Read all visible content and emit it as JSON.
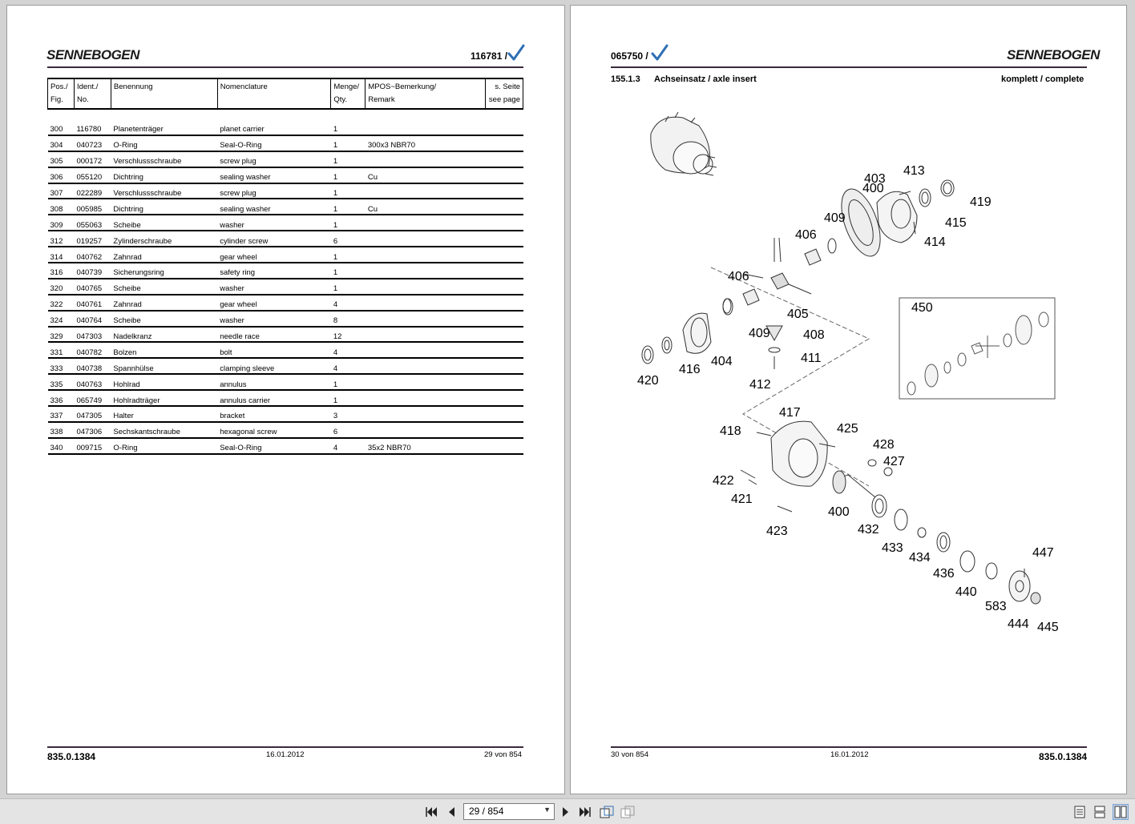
{
  "left_page": {
    "logo": "SENNEBOGEN",
    "doc_number": "116781 /",
    "headers": {
      "pos": [
        "Pos./",
        "Fig."
      ],
      "ident": [
        "Ident./",
        "No."
      ],
      "benennung": "Benennung",
      "nomenclature": "Nomenclature",
      "menge": [
        "Menge/",
        "Qty."
      ],
      "mpos": [
        "MPOS~Bemerkung/",
        "Remark"
      ],
      "seite": [
        "s. Seite",
        "see page"
      ]
    },
    "rows": [
      {
        "pos": "300",
        "ident": "116780",
        "de": "Planetenträger",
        "en": "planet carrier",
        "qty": "1",
        "remark": ""
      },
      {
        "pos": "304",
        "ident": "040723",
        "de": "O-Ring",
        "en": "Seal-O-Ring",
        "qty": "1",
        "remark": "300x3 NBR70"
      },
      {
        "pos": "305",
        "ident": "000172",
        "de": "Verschlussschraube",
        "en": "screw plug",
        "qty": "1",
        "remark": ""
      },
      {
        "pos": "306",
        "ident": "055120",
        "de": "Dichtring",
        "en": "sealing washer",
        "qty": "1",
        "remark": "Cu"
      },
      {
        "pos": "307",
        "ident": "022289",
        "de": "Verschlussschraube",
        "en": "screw plug",
        "qty": "1",
        "remark": ""
      },
      {
        "pos": "308",
        "ident": "005985",
        "de": "Dichtring",
        "en": "sealing washer",
        "qty": "1",
        "remark": "Cu"
      },
      {
        "pos": "309",
        "ident": "055063",
        "de": "Scheibe",
        "en": "washer",
        "qty": "1",
        "remark": ""
      },
      {
        "pos": "312",
        "ident": "019257",
        "de": "Zylinderschraube",
        "en": "cylinder screw",
        "qty": "6",
        "remark": ""
      },
      {
        "pos": "314",
        "ident": "040762",
        "de": "Zahnrad",
        "en": "gear wheel",
        "qty": "1",
        "remark": ""
      },
      {
        "pos": "316",
        "ident": "040739",
        "de": "Sicherungsring",
        "en": "safety ring",
        "qty": "1",
        "remark": ""
      },
      {
        "pos": "320",
        "ident": "040765",
        "de": "Scheibe",
        "en": "washer",
        "qty": "1",
        "remark": ""
      },
      {
        "pos": "322",
        "ident": "040761",
        "de": "Zahnrad",
        "en": "gear wheel",
        "qty": "4",
        "remark": ""
      },
      {
        "pos": "324",
        "ident": "040764",
        "de": "Scheibe",
        "en": "washer",
        "qty": "8",
        "remark": ""
      },
      {
        "pos": "329",
        "ident": "047303",
        "de": "Nadelkranz",
        "en": "needle race",
        "qty": "12",
        "remark": ""
      },
      {
        "pos": "331",
        "ident": "040782",
        "de": "Bolzen",
        "en": "bolt",
        "qty": "4",
        "remark": ""
      },
      {
        "pos": "333",
        "ident": "040738",
        "de": "Spannhülse",
        "en": "clamping sleeve",
        "qty": "4",
        "remark": ""
      },
      {
        "pos": "335",
        "ident": "040763",
        "de": "Hohlrad",
        "en": "annulus",
        "qty": "1",
        "remark": ""
      },
      {
        "pos": "336",
        "ident": "065749",
        "de": "Hohlradträger",
        "en": "annulus carrier",
        "qty": "1",
        "remark": ""
      },
      {
        "pos": "337",
        "ident": "047305",
        "de": "Halter",
        "en": "bracket",
        "qty": "3",
        "remark": ""
      },
      {
        "pos": "338",
        "ident": "047306",
        "de": "Sechskantschraube",
        "en": "hexagonal screw",
        "qty": "6",
        "remark": ""
      },
      {
        "pos": "340",
        "ident": "009715",
        "de": "O-Ring",
        "en": "Seal-O-Ring",
        "qty": "4",
        "remark": "35x2 NBR70"
      }
    ],
    "footer": {
      "doc": "835.0.1384",
      "date": "16.01.2012",
      "page": "29 von 854"
    }
  },
  "right_page": {
    "logo": "SENNEBOGEN",
    "doc_number": "065750 /",
    "section_number": "155.1.3",
    "section_title": "Achseinsatz / axle insert",
    "status": "komplett / complete",
    "callouts": [
      "400",
      "403",
      "413",
      "419",
      "415",
      "414",
      "409",
      "406",
      "406",
      "405",
      "408",
      "409",
      "411",
      "412",
      "404",
      "416",
      "420",
      "450",
      "417",
      "418",
      "425",
      "428",
      "427",
      "422",
      "421",
      "400",
      "423",
      "432",
      "433",
      "434",
      "436",
      "440",
      "447",
      "583",
      "444",
      "445"
    ],
    "footer": {
      "page": "30 von 854",
      "date": "16.01.2012",
      "doc": "835.0.1384"
    }
  },
  "toolbar": {
    "page_value": "29 / 854",
    "icons": [
      "first-page-icon",
      "prev-page-icon",
      "next-page-icon",
      "last-page-icon",
      "fit-icon",
      "rotate-icon",
      "single-page-icon",
      "continuous-icon",
      "two-page-icon"
    ]
  }
}
